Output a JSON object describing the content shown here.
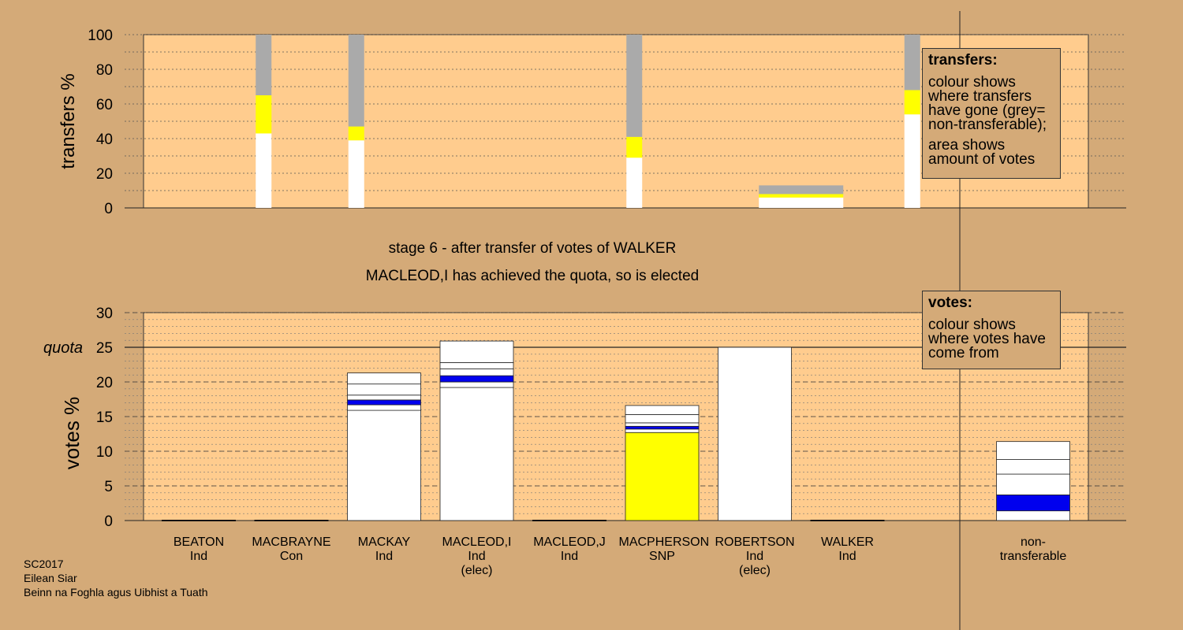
{
  "header": {
    "stage_caption": "stage 6 - after transfer of votes of WALKER",
    "elected_caption": "MACLEOD,I has achieved the quota, so is elected"
  },
  "legend_transfers": {
    "title": "transfers:",
    "line1": "colour shows where transfers have gone (grey= non-transferable);",
    "line2": "area shows amount of votes"
  },
  "legend_votes": {
    "title": "votes:",
    "line1": "colour shows where votes have come from"
  },
  "footer": {
    "line1": "SC2017",
    "line2": "Eilean Siar",
    "line3": "Beinn na Foghla agus Uibhist a Tuath"
  },
  "colors": {
    "background": "#d4aa78",
    "plot_bg": "#ffcc8e",
    "white": "#ffffff",
    "yellow": "#ffff00",
    "blue": "#0000ee",
    "grey": "#aaaaaa"
  },
  "chart_data": [
    {
      "type": "bar",
      "subtype": "stacked-transfers",
      "ylabel": "transfers %",
      "ylim": [
        0,
        100
      ],
      "yticks": [
        0,
        20,
        40,
        60,
        80,
        100
      ],
      "grid": "dotted",
      "bars": [
        {
          "slot": 0.7,
          "width": "narrow",
          "segments": [
            {
              "value": 43,
              "color": "white"
            },
            {
              "value": 22,
              "color": "yellow"
            },
            {
              "value": 35,
              "color": "grey"
            }
          ]
        },
        {
          "slot": 1.7,
          "width": "narrow",
          "segments": [
            {
              "value": 39,
              "color": "white"
            },
            {
              "value": 8,
              "color": "yellow"
            },
            {
              "value": 53,
              "color": "grey"
            }
          ]
        },
        {
          "slot": 4.7,
          "width": "narrow",
          "segments": [
            {
              "value": 29,
              "color": "white"
            },
            {
              "value": 12,
              "color": "yellow"
            },
            {
              "value": 59,
              "color": "grey"
            }
          ]
        },
        {
          "slot": 6.5,
          "width": "wide",
          "segments": [
            {
              "value": 6,
              "color": "white"
            },
            {
              "value": 2,
              "color": "yellow"
            },
            {
              "value": 5,
              "color": "grey"
            }
          ]
        },
        {
          "slot": 7.7,
          "width": "narrow",
          "segments": [
            {
              "value": 54,
              "color": "white"
            },
            {
              "value": 14,
              "color": "yellow"
            },
            {
              "value": 32,
              "color": "grey"
            }
          ]
        }
      ]
    },
    {
      "type": "bar",
      "subtype": "stacked-votes",
      "ylabel": "votes %",
      "ylim": [
        0,
        30
      ],
      "yticks": [
        0,
        5,
        10,
        15,
        20,
        25,
        30
      ],
      "quota": 25,
      "quota_label": "quota",
      "grid": "dashed",
      "candidates": [
        {
          "name": "BEATON",
          "party": "Ind",
          "note": "",
          "slot": 0,
          "segments": []
        },
        {
          "name": "MACBRAYNE",
          "party": "Con",
          "note": "",
          "slot": 1,
          "segments": []
        },
        {
          "name": "MACKAY",
          "party": "Ind",
          "note": "",
          "slot": 2,
          "segments": [
            {
              "value": 15.9,
              "color": "white"
            },
            {
              "value": 0.8,
              "color": "white"
            },
            {
              "value": 0.7,
              "color": "blue"
            },
            {
              "value": 0.7,
              "color": "white"
            },
            {
              "value": 1.6,
              "color": "white"
            },
            {
              "value": 1.6,
              "color": "white"
            }
          ]
        },
        {
          "name": "MACLEOD,I",
          "party": "Ind",
          "note": "(elec)",
          "slot": 3,
          "segments": [
            {
              "value": 19.2,
              "color": "white"
            },
            {
              "value": 0.8,
              "color": "white"
            },
            {
              "value": 0.9,
              "color": "blue"
            },
            {
              "value": 1.0,
              "color": "white"
            },
            {
              "value": 0.9,
              "color": "white"
            },
            {
              "value": 3.1,
              "color": "white"
            }
          ]
        },
        {
          "name": "MACLEOD,J",
          "party": "Ind",
          "note": "",
          "slot": 4,
          "segments": []
        },
        {
          "name": "MACPHERSON",
          "party": "SNP",
          "note": "",
          "slot": 5,
          "segments": [
            {
              "value": 12.7,
              "color": "yellow"
            },
            {
              "value": 0.5,
              "color": "white"
            },
            {
              "value": 0.4,
              "color": "blue"
            },
            {
              "value": 0.5,
              "color": "white"
            },
            {
              "value": 1.2,
              "color": "white"
            },
            {
              "value": 1.3,
              "color": "white"
            }
          ]
        },
        {
          "name": "ROBERTSON",
          "party": "Ind",
          "note": "(elec)",
          "slot": 6,
          "segments": [
            {
              "value": 25.0,
              "color": "white"
            }
          ]
        },
        {
          "name": "WALKER",
          "party": "Ind",
          "note": "",
          "slot": 7,
          "segments": []
        }
      ],
      "nontransferable": {
        "label_line1": "non-",
        "label_line2": "transferable",
        "segments": [
          {
            "value": 1.4,
            "color": "white"
          },
          {
            "value": 2.3,
            "color": "blue"
          },
          {
            "value": 3.0,
            "color": "white"
          },
          {
            "value": 2.1,
            "color": "white"
          },
          {
            "value": 2.6,
            "color": "white"
          }
        ]
      }
    }
  ]
}
